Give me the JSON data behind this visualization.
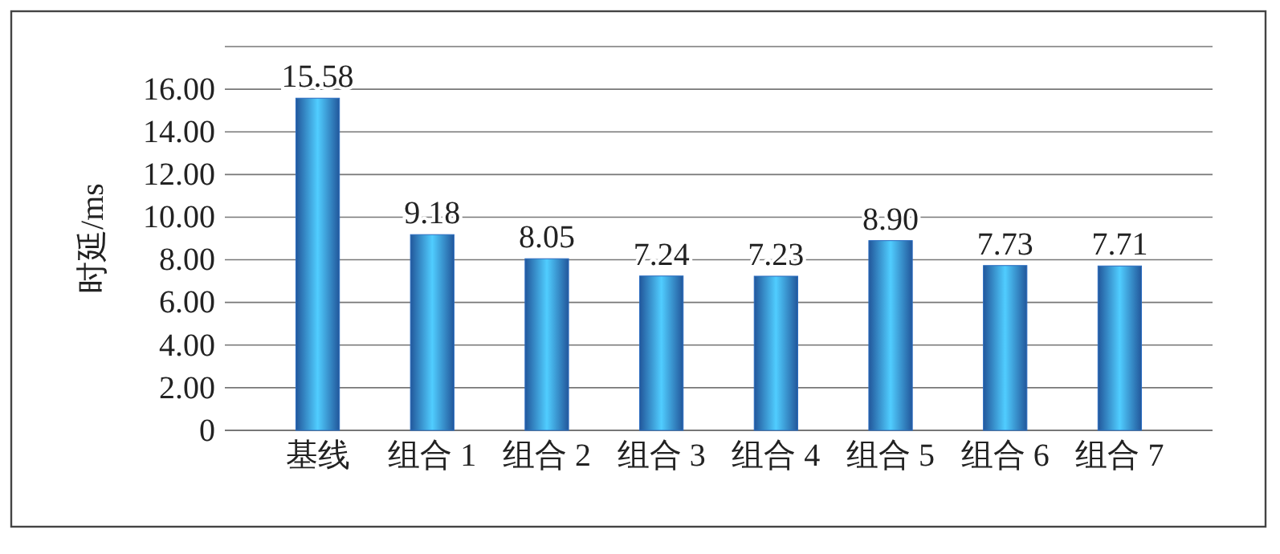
{
  "chart_data": {
    "type": "bar",
    "ylabel": "时延/ms",
    "categories": [
      "基线",
      "组合 1",
      "组合 2",
      "组合 3",
      "组合 4",
      "组合 5",
      "组合 6",
      "组合 7"
    ],
    "values": [
      15.58,
      9.18,
      8.05,
      7.24,
      7.23,
      8.9,
      7.73,
      7.71
    ],
    "value_labels": [
      "15.58",
      "9.18",
      "8.05",
      "7.24",
      "7.23",
      "8.90",
      "7.73",
      "7.71"
    ],
    "color": "#2a6cc0",
    "ylim": [
      0,
      18
    ],
    "yticks": [
      0,
      {
        "value": 2,
        "label": "2.00"
      },
      {
        "value": 4,
        "label": "4.00"
      },
      {
        "value": 6,
        "label": "6.00"
      },
      {
        "value": 8,
        "label": "8.00"
      },
      {
        "value": 10,
        "label": "10.00"
      },
      {
        "value": 12,
        "label": "12.00"
      },
      {
        "value": 14,
        "label": "14.00"
      },
      {
        "value": 16,
        "label": "16.00"
      },
      {
        "value": 18,
        "label": null
      }
    ],
    "grid": "y"
  }
}
